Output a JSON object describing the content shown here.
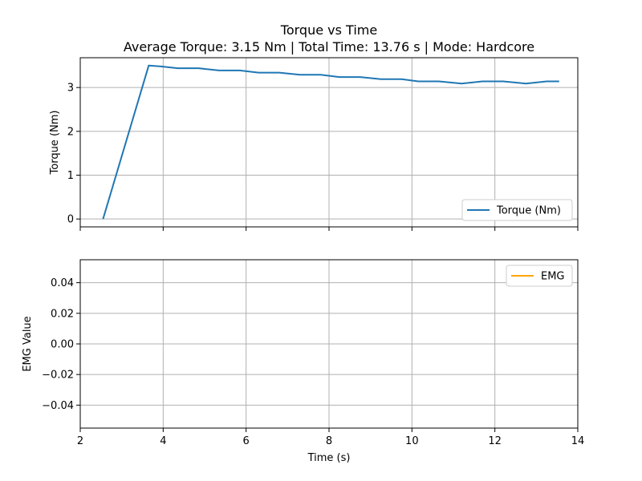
{
  "chart_data": [
    {
      "type": "line",
      "title": "Torque vs Time",
      "subtitle": "Average Torque: 3.15 Nm | Total Time: 13.76 s | Mode: Hardcore",
      "xlabel": "",
      "ylabel": "Torque (Nm)",
      "xlim": [
        2,
        14
      ],
      "ylim": [
        -0.18,
        3.68
      ],
      "xticks": [
        2,
        4,
        6,
        8,
        10,
        12,
        14
      ],
      "xtick_labels_visible": false,
      "yticks": [
        0,
        1,
        2,
        3
      ],
      "ytick_labels": [
        "0",
        "1",
        "2",
        "3"
      ],
      "grid": true,
      "legend": "lower right",
      "series": [
        {
          "name": "Torque (Nm)",
          "color": "#1f77b4",
          "x": [
            2.55,
            3.65,
            3.95,
            4.35,
            4.85,
            5.35,
            5.85,
            6.3,
            6.8,
            7.3,
            7.8,
            8.25,
            8.75,
            9.25,
            9.75,
            10.15,
            10.65,
            11.2,
            11.7,
            12.2,
            12.75,
            13.25,
            13.55
          ],
          "y": [
            0.0,
            3.5,
            3.48,
            3.44,
            3.44,
            3.39,
            3.39,
            3.34,
            3.34,
            3.29,
            3.29,
            3.24,
            3.24,
            3.19,
            3.19,
            3.14,
            3.14,
            3.09,
            3.14,
            3.14,
            3.09,
            3.14,
            3.14
          ]
        }
      ]
    },
    {
      "type": "line",
      "title": "",
      "xlabel": "Time (s)",
      "ylabel": "EMG Value",
      "xlim": [
        2,
        14
      ],
      "ylim": [
        -0.055,
        0.055
      ],
      "xticks": [
        2,
        4,
        6,
        8,
        10,
        12,
        14
      ],
      "xtick_labels": [
        "2",
        "4",
        "6",
        "8",
        "10",
        "12",
        "14"
      ],
      "yticks": [
        -0.04,
        -0.02,
        0.0,
        0.02,
        0.04
      ],
      "ytick_labels": [
        "−0.04",
        "−0.02",
        "0.00",
        "0.02",
        "0.04"
      ],
      "grid": true,
      "legend": "upper right",
      "series": [
        {
          "name": "EMG",
          "color": "#ffa500",
          "x": [],
          "y": []
        }
      ]
    }
  ]
}
